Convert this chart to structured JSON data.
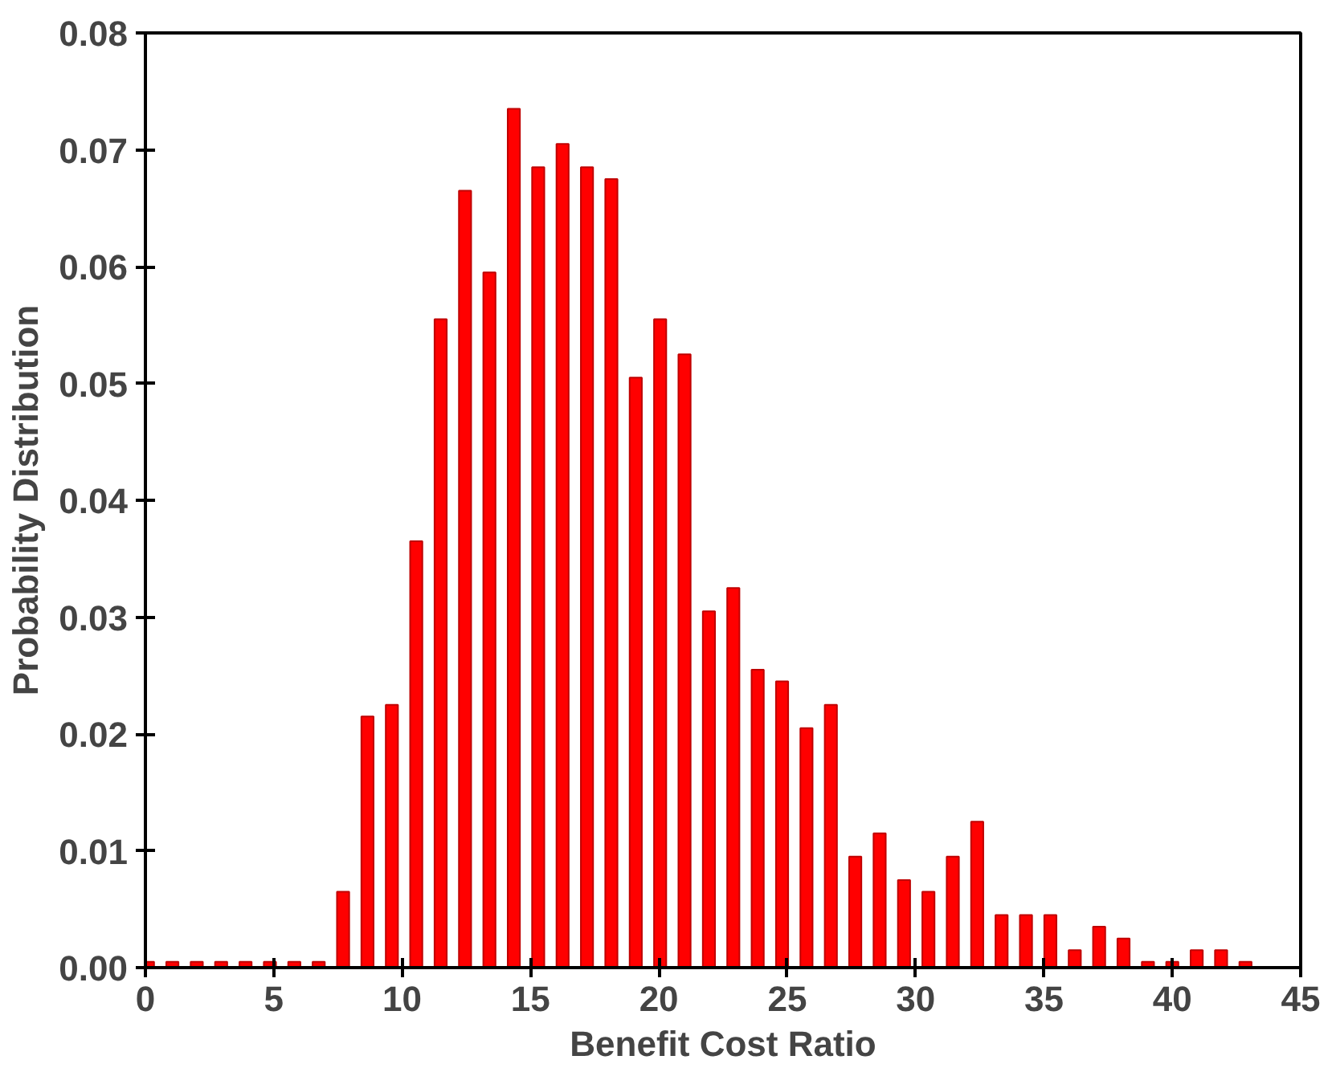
{
  "chart_data": {
    "type": "bar",
    "xlabel": "Benefit Cost Ratio",
    "ylabel": "Probability Distribution",
    "x": [
      0.1,
      1.05,
      2.0,
      2.95,
      3.9,
      4.85,
      5.8,
      6.75,
      7.7,
      8.65,
      9.6,
      10.55,
      11.5,
      12.45,
      13.4,
      14.35,
      15.3,
      16.25,
      17.2,
      18.15,
      19.1,
      20.05,
      21.0,
      21.95,
      22.9,
      23.85,
      24.8,
      25.75,
      26.7,
      27.65,
      28.6,
      29.55,
      30.5,
      31.45,
      32.4,
      33.35,
      34.3,
      35.25,
      36.2,
      37.15,
      38.1,
      39.05,
      40.0,
      40.95,
      41.9,
      42.85
    ],
    "values": [
      0.0005,
      0.0005,
      0.0005,
      0.0005,
      0.0005,
      0.0005,
      0.0005,
      0.0005,
      0.0065,
      0.0215,
      0.0225,
      0.0365,
      0.0555,
      0.0665,
      0.0595,
      0.0735,
      0.0685,
      0.0705,
      0.0685,
      0.0675,
      0.0505,
      0.0555,
      0.0525,
      0.0305,
      0.0325,
      0.0255,
      0.0245,
      0.0205,
      0.0225,
      0.0095,
      0.0115,
      0.0075,
      0.0065,
      0.0095,
      0.0125,
      0.0045,
      0.0045,
      0.0045,
      0.0015,
      0.0035,
      0.0025,
      0.0005,
      0.0005,
      0.0015,
      0.0015,
      0.0005
    ],
    "color": "#ff0000",
    "xlim": [
      0,
      45
    ],
    "xticks": [
      0,
      5,
      10,
      15,
      20,
      25,
      30,
      35,
      40,
      45
    ],
    "ylim": [
      0,
      0.08
    ],
    "yticks": [
      {
        "value": 0,
        "label": "0.00"
      },
      {
        "value": 0.01,
        "label": "0.01"
      },
      {
        "value": 0.02,
        "label": "0.02"
      },
      {
        "value": 0.03,
        "label": "0.03"
      },
      {
        "value": 0.04,
        "label": "0.04"
      },
      {
        "value": 0.05,
        "label": "0.05"
      },
      {
        "value": 0.06,
        "label": "0.06"
      },
      {
        "value": 0.07,
        "label": "0.07"
      },
      {
        "value": 0.08,
        "label": "0.08"
      }
    ],
    "grid": false
  }
}
